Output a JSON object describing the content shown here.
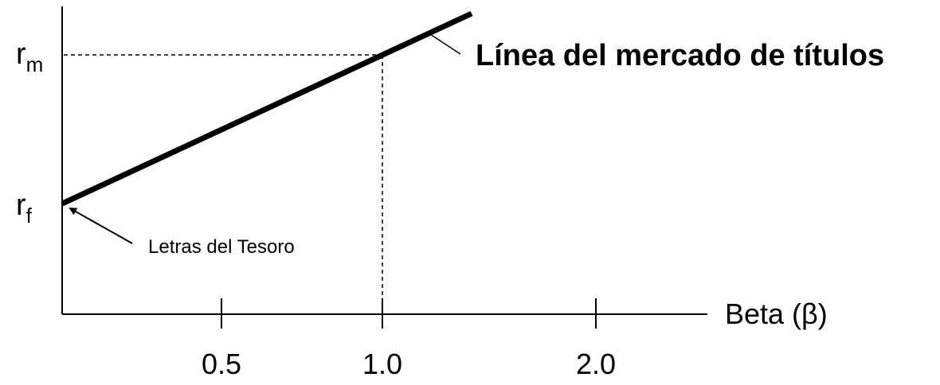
{
  "diagram": {
    "line_label": "Línea del mercado de títulos",
    "axis_title": "Beta (β)",
    "y_labels": {
      "rm_main": "r",
      "rm_sub": "m",
      "rf_main": "r",
      "rf_sub": "f"
    },
    "x_ticks": [
      "0.5",
      "1.0",
      "2.0"
    ],
    "annotation": "Letras del Tesoro"
  }
}
